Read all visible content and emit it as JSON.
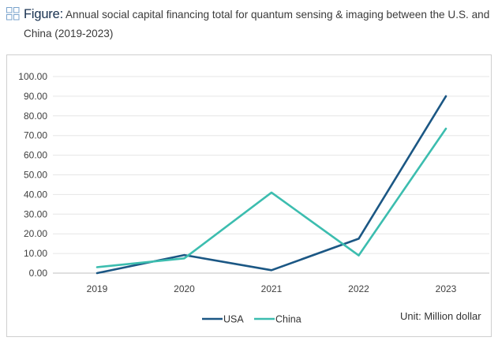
{
  "caption": {
    "label": "Figure:",
    "text": "Annual social capital financing total for quantum sensing & imaging between the U.S. and China (2019-2023)",
    "icon": "figure-grid-icon"
  },
  "unit_label": "Unit: Million dollar",
  "colors": {
    "USA": "#1b5784",
    "China": "#3cbdaf"
  },
  "chart_data": {
    "type": "line",
    "title": "Annual social capital financing total for quantum sensing & imaging between the U.S. and China (2019-2023)",
    "xlabel": "",
    "ylabel": "",
    "categories": [
      "2019",
      "2020",
      "2021",
      "2022",
      "2023"
    ],
    "y_ticks": [
      "0.00",
      "10.00",
      "20.00",
      "30.00",
      "40.00",
      "50.00",
      "60.00",
      "70.00",
      "80.00",
      "90.00",
      "100.00"
    ],
    "ylim": [
      0,
      100
    ],
    "grid": true,
    "legend_position": "bottom",
    "series": [
      {
        "name": "USA",
        "values": [
          0.0,
          9.2,
          1.5,
          17.5,
          90.0
        ]
      },
      {
        "name": "China",
        "values": [
          3.0,
          7.5,
          41.0,
          9.0,
          73.5
        ]
      }
    ]
  }
}
